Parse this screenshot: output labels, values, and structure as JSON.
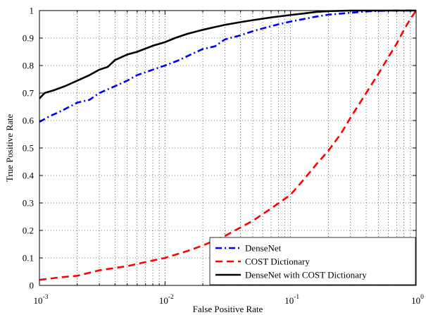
{
  "chart_data": {
    "type": "line",
    "xlabel": "False Positive Rate",
    "ylabel": "True Positive Rate",
    "xscale": "log",
    "xlim": [
      0.001,
      1
    ],
    "ylim": [
      0,
      1
    ],
    "grid": true,
    "legend_position": "bottom-right",
    "x_ticks": [
      {
        "value": 0.001,
        "base": "10",
        "exp": "-3"
      },
      {
        "value": 0.01,
        "base": "10",
        "exp": "-2"
      },
      {
        "value": 0.1,
        "base": "10",
        "exp": "-1"
      },
      {
        "value": 1,
        "base": "10",
        "exp": "0"
      }
    ],
    "y_ticks": [
      {
        "value": 0,
        "label": "0"
      },
      {
        "value": 0.1,
        "label": "0.1"
      },
      {
        "value": 0.2,
        "label": "0.2"
      },
      {
        "value": 0.3,
        "label": "0.3"
      },
      {
        "value": 0.4,
        "label": "0.4"
      },
      {
        "value": 0.5,
        "label": "0.5"
      },
      {
        "value": 0.6,
        "label": "0.6"
      },
      {
        "value": 0.7,
        "label": "0.7"
      },
      {
        "value": 0.8,
        "label": "0.8"
      },
      {
        "value": 0.9,
        "label": "0.9"
      },
      {
        "value": 1,
        "label": "1"
      }
    ],
    "series": [
      {
        "name": "DenseNet",
        "color": "#0000ff",
        "style": "dashdot",
        "points": [
          [
            0.001,
            0.595
          ],
          [
            0.0012,
            0.615
          ],
          [
            0.0015,
            0.635
          ],
          [
            0.002,
            0.665
          ],
          [
            0.0025,
            0.675
          ],
          [
            0.003,
            0.7
          ],
          [
            0.004,
            0.725
          ],
          [
            0.005,
            0.745
          ],
          [
            0.006,
            0.765
          ],
          [
            0.008,
            0.785
          ],
          [
            0.01,
            0.8
          ],
          [
            0.013,
            0.82
          ],
          [
            0.016,
            0.84
          ],
          [
            0.02,
            0.86
          ],
          [
            0.025,
            0.87
          ],
          [
            0.03,
            0.895
          ],
          [
            0.04,
            0.91
          ],
          [
            0.05,
            0.925
          ],
          [
            0.06,
            0.935
          ],
          [
            0.08,
            0.95
          ],
          [
            0.1,
            0.96
          ],
          [
            0.13,
            0.97
          ],
          [
            0.16,
            0.978
          ],
          [
            0.2,
            0.985
          ],
          [
            0.3,
            0.992
          ],
          [
            0.4,
            0.997
          ],
          [
            0.6,
            1.0
          ],
          [
            1,
            1.0
          ]
        ]
      },
      {
        "name": "COST Dictionary",
        "color": "#ff0000",
        "style": "dashed",
        "points": [
          [
            0.001,
            0.02
          ],
          [
            0.0015,
            0.03
          ],
          [
            0.002,
            0.035
          ],
          [
            0.003,
            0.055
          ],
          [
            0.005,
            0.07
          ],
          [
            0.007,
            0.085
          ],
          [
            0.01,
            0.1
          ],
          [
            0.015,
            0.125
          ],
          [
            0.02,
            0.145
          ],
          [
            0.03,
            0.18
          ],
          [
            0.05,
            0.235
          ],
          [
            0.07,
            0.28
          ],
          [
            0.1,
            0.33
          ],
          [
            0.13,
            0.39
          ],
          [
            0.16,
            0.44
          ],
          [
            0.2,
            0.49
          ],
          [
            0.25,
            0.55
          ],
          [
            0.3,
            0.61
          ],
          [
            0.4,
            0.7
          ],
          [
            0.5,
            0.77
          ],
          [
            0.6,
            0.83
          ],
          [
            0.7,
            0.88
          ],
          [
            0.8,
            0.93
          ],
          [
            0.9,
            0.97
          ],
          [
            1,
            1.0
          ]
        ]
      },
      {
        "name": "DenseNet with COST Dictionary",
        "color": "#000000",
        "style": "solid",
        "points": [
          [
            0.001,
            0.68
          ],
          [
            0.0011,
            0.7
          ],
          [
            0.0013,
            0.71
          ],
          [
            0.0016,
            0.725
          ],
          [
            0.002,
            0.745
          ],
          [
            0.0025,
            0.765
          ],
          [
            0.003,
            0.785
          ],
          [
            0.0035,
            0.795
          ],
          [
            0.004,
            0.82
          ],
          [
            0.005,
            0.84
          ],
          [
            0.006,
            0.85
          ],
          [
            0.008,
            0.872
          ],
          [
            0.01,
            0.885
          ],
          [
            0.012,
            0.9
          ],
          [
            0.015,
            0.915
          ],
          [
            0.02,
            0.93
          ],
          [
            0.025,
            0.94
          ],
          [
            0.03,
            0.948
          ],
          [
            0.04,
            0.958
          ],
          [
            0.05,
            0.965
          ],
          [
            0.07,
            0.975
          ],
          [
            0.1,
            0.984
          ],
          [
            0.13,
            0.99
          ],
          [
            0.16,
            0.995
          ],
          [
            0.2,
            0.998
          ],
          [
            0.3,
            1.0
          ],
          [
            1,
            1.0
          ]
        ]
      }
    ]
  }
}
